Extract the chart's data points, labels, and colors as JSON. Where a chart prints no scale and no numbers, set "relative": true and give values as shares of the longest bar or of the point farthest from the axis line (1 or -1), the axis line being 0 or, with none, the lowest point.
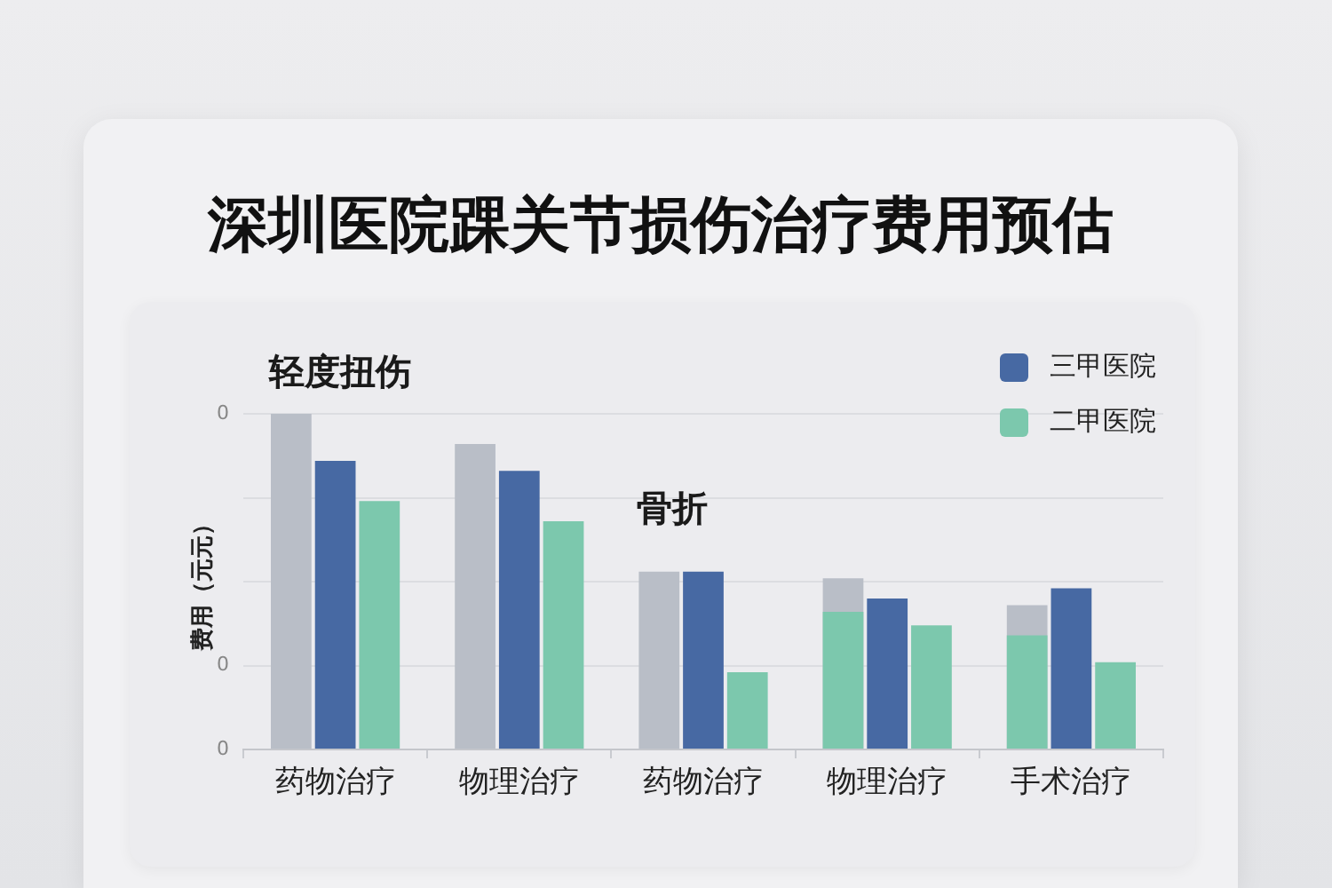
{
  "chart_data": {
    "type": "bar",
    "title": "深圳医院踝关节损伤治疗费用预估",
    "ylabel": "费用（元元）",
    "categories": [
      "药物治疗",
      "物理治疗",
      "药物治疗",
      "物理治疗",
      "手术治疗"
    ],
    "series": [
      {
        "color": "#b9bec7",
        "values": [
          1,
          0.91,
          0.53,
          0.51,
          0.43
        ]
      },
      {
        "color": "#7cc8ad",
        "values": [
          null,
          null,
          null,
          0.41,
          0.34
        ]
      },
      {
        "name": "三甲医院",
        "color": "#4769a3",
        "values": [
          0.86,
          0.83,
          0.53,
          0.45,
          0.48
        ]
      },
      {
        "name": "二甲医院",
        "color": "#7cc8ad",
        "values": [
          0.74,
          0.68,
          0.23,
          0.37,
          0.26
        ]
      }
    ],
    "relative": true,
    "grid": "y",
    "legend": "top right",
    "annotations": [
      "轻度扭伤",
      "骨折",
      "0",
      "0",
      "0"
    ]
  }
}
